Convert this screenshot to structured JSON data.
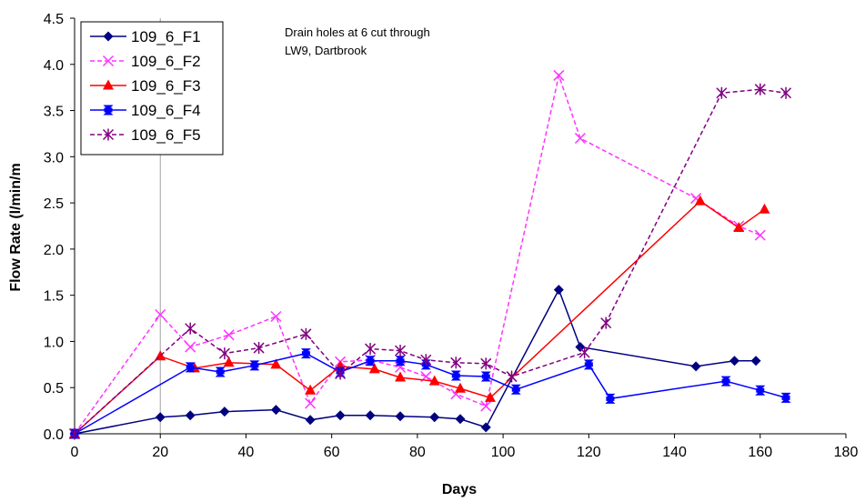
{
  "chart_data": {
    "type": "line",
    "title": "",
    "xlabel": "Days",
    "ylabel": "Flow Rate (l/min/m",
    "xlim": [
      0,
      180
    ],
    "ylim": [
      0,
      4.5
    ],
    "x_ticks": [
      "0",
      "20",
      "40",
      "60",
      "80",
      "100",
      "120",
      "140",
      "160",
      "180"
    ],
    "y_ticks": [
      "0.0",
      "0.5",
      "1.0",
      "1.5",
      "2.0",
      "2.5",
      "3.0",
      "3.5",
      "4.0",
      "4.5"
    ],
    "grid": "vertical line at x=20",
    "legend_position": "top-left",
    "annotation": [
      "Drain holes at 6 cut through",
      "LW9, Dartbrook"
    ],
    "series": [
      {
        "name": "109_6_F1",
        "color": "#000080",
        "marker": "diamond",
        "dash": "solid",
        "points": [
          [
            0,
            0.0
          ],
          [
            20,
            0.18
          ],
          [
            27,
            0.2
          ],
          [
            35,
            0.24
          ],
          [
            47,
            0.26
          ],
          [
            55,
            0.15
          ],
          [
            62,
            0.2
          ],
          [
            69,
            0.2
          ],
          [
            76,
            0.19
          ],
          [
            84,
            0.18
          ],
          [
            90,
            0.16
          ],
          [
            96,
            0.07
          ],
          [
            113,
            1.56
          ],
          [
            118,
            0.94
          ],
          [
            145,
            0.73
          ],
          [
            154,
            0.79
          ],
          [
            159,
            0.79
          ]
        ]
      },
      {
        "name": "109_6_F2",
        "color": "#FF33FF",
        "marker": "x",
        "dash": "dashed",
        "points": [
          [
            0,
            0.0
          ],
          [
            20,
            1.29
          ],
          [
            27,
            0.94
          ],
          [
            36,
            1.07
          ],
          [
            47,
            1.27
          ],
          [
            55,
            0.33
          ],
          [
            62,
            0.78
          ],
          [
            69,
            0.8
          ],
          [
            76,
            0.72
          ],
          [
            82,
            0.62
          ],
          [
            89,
            0.43
          ],
          [
            96,
            0.3
          ],
          [
            113,
            3.88
          ],
          [
            118,
            3.2
          ],
          [
            145,
            2.55
          ],
          [
            155,
            2.25
          ],
          [
            160,
            2.15
          ]
        ]
      },
      {
        "name": "109_6_F3",
        "color": "#FF0000",
        "marker": "triangle",
        "dash": "solid",
        "points": [
          [
            0,
            0.0
          ],
          [
            20,
            0.84
          ],
          [
            28,
            0.71
          ],
          [
            36,
            0.77
          ],
          [
            47,
            0.75
          ],
          [
            55,
            0.47
          ],
          [
            62,
            0.73
          ],
          [
            70,
            0.7
          ],
          [
            76,
            0.61
          ],
          [
            84,
            0.57
          ],
          [
            90,
            0.49
          ],
          [
            97,
            0.39
          ],
          [
            146,
            2.52
          ],
          [
            155,
            2.23
          ],
          [
            161,
            2.43
          ]
        ]
      },
      {
        "name": "109_6_F4",
        "color": "#0000FF",
        "marker": "square-bowtie",
        "dash": "solid",
        "points": [
          [
            0,
            0.0
          ],
          [
            27,
            0.72
          ],
          [
            34,
            0.67
          ],
          [
            42,
            0.74
          ],
          [
            54,
            0.87
          ],
          [
            62,
            0.67
          ],
          [
            69,
            0.79
          ],
          [
            76,
            0.79
          ],
          [
            82,
            0.75
          ],
          [
            89,
            0.63
          ],
          [
            96,
            0.62
          ],
          [
            103,
            0.48
          ],
          [
            120,
            0.75
          ],
          [
            125,
            0.38
          ],
          [
            152,
            0.57
          ],
          [
            160,
            0.47
          ],
          [
            166,
            0.39
          ]
        ]
      },
      {
        "name": "109_6_F5",
        "color": "#800080",
        "marker": "star",
        "dash": "dashed",
        "points": [
          [
            0,
            0.0
          ],
          [
            27,
            1.14
          ],
          [
            35,
            0.87
          ],
          [
            43,
            0.93
          ],
          [
            54,
            1.08
          ],
          [
            62,
            0.65
          ],
          [
            69,
            0.92
          ],
          [
            76,
            0.9
          ],
          [
            82,
            0.8
          ],
          [
            89,
            0.77
          ],
          [
            96,
            0.76
          ],
          [
            102,
            0.62
          ],
          [
            119,
            0.88
          ],
          [
            124,
            1.2
          ],
          [
            151,
            3.69
          ],
          [
            160,
            3.73
          ],
          [
            166,
            3.69
          ]
        ]
      }
    ]
  }
}
